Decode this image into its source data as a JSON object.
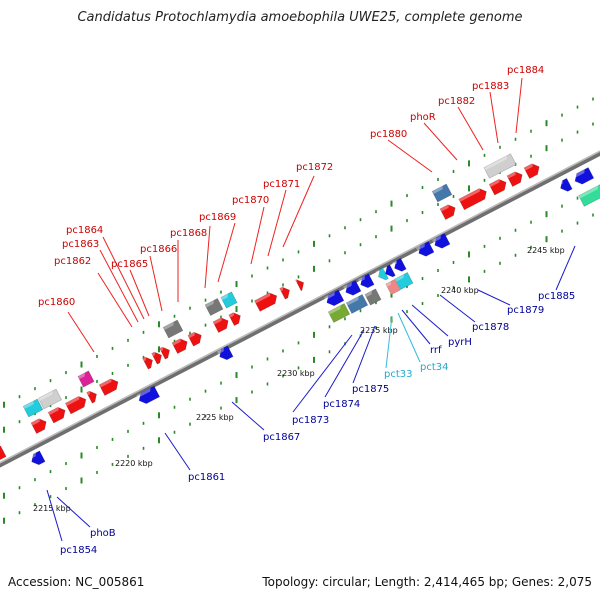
{
  "title": "Candidatus Protochlamydia amoebophila UWE25, complete genome",
  "accession": "Accession: NC_005861",
  "topology": "Topology: circular; Length: 2,414,465 bp; Genes: 2,075",
  "colors": {
    "forward_gene": "#ee1111",
    "reverse_gene": "#1111dd",
    "rna_gene": "#22bbdd",
    "backbone": "#888888",
    "tick": "#228822",
    "label_forward": "#cc0000",
    "label_reverse": "#0000aa",
    "label_rna": "#22aacc"
  },
  "kbp_labels": [
    "2215 kbp",
    "2220 kbp",
    "2225 kbp",
    "2230 kbp",
    "2235 kbp",
    "2240 kbp",
    "2245 kbp"
  ],
  "forward_labels": [
    "pc1860",
    "pc1862",
    "pc1863",
    "pc1864",
    "pc1865",
    "pc1866",
    "pc1868",
    "pc1869",
    "pc1870",
    "pc1871",
    "pc1872",
    "pc1880",
    "phoR",
    "pc1882",
    "pc1883",
    "pc1884"
  ],
  "reverse_labels": [
    "pc1854",
    "phoB",
    "pc1861",
    "pc1867",
    "pc1873",
    "pc1874",
    "pc1875",
    "pct33",
    "pct34",
    "rrf",
    "pyrH",
    "pc1878",
    "pc1879",
    "pc1885"
  ]
}
